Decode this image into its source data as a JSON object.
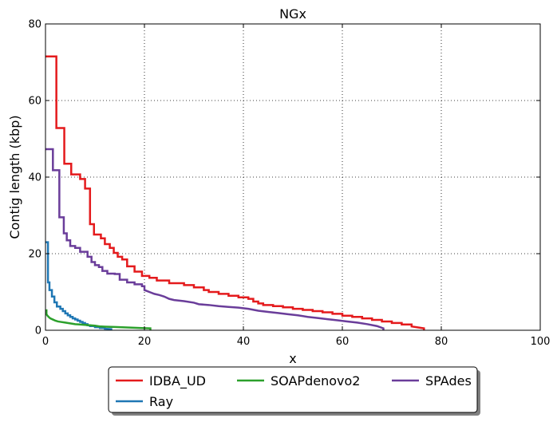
{
  "chart_data": {
    "type": "line",
    "title": "NGx",
    "xlabel": "x",
    "ylabel": "Contig length  (kbp)",
    "xlim": [
      0,
      100
    ],
    "ylim": [
      0,
      80
    ],
    "xticks": [
      0,
      20,
      40,
      60,
      80,
      100
    ],
    "yticks": [
      0,
      20,
      40,
      60,
      80
    ],
    "grid": true,
    "legend_position": "bottom-center",
    "series": [
      {
        "name": "IDBA_UD",
        "color": "#e41a1c",
        "points": [
          [
            0,
            71.5
          ],
          [
            2.2,
            71.5
          ],
          [
            2.2,
            52.8
          ],
          [
            3.8,
            52.8
          ],
          [
            3.8,
            43.5
          ],
          [
            5.2,
            43.5
          ],
          [
            5.2,
            40.7
          ],
          [
            7,
            40.7
          ],
          [
            7,
            39.5
          ],
          [
            8,
            39.5
          ],
          [
            8,
            37
          ],
          [
            9,
            37
          ],
          [
            9,
            27.7
          ],
          [
            9.8,
            27.7
          ],
          [
            9.8,
            25
          ],
          [
            11.2,
            25
          ],
          [
            11.2,
            24
          ],
          [
            12,
            24
          ],
          [
            12,
            22.5
          ],
          [
            13,
            22.5
          ],
          [
            13,
            21.5
          ],
          [
            13.8,
            21.5
          ],
          [
            13.8,
            20.2
          ],
          [
            14.6,
            20.2
          ],
          [
            14.6,
            19.2
          ],
          [
            15.5,
            19.2
          ],
          [
            15.5,
            18.5
          ],
          [
            16.5,
            18.5
          ],
          [
            16.5,
            16.7
          ],
          [
            18,
            16.7
          ],
          [
            18,
            15.3
          ],
          [
            19.5,
            15.3
          ],
          [
            19.5,
            14.2
          ],
          [
            21,
            14.2
          ],
          [
            21,
            13.7
          ],
          [
            22.5,
            13.7
          ],
          [
            22.5,
            13
          ],
          [
            25,
            13
          ],
          [
            25,
            12.3
          ],
          [
            28,
            12.3
          ],
          [
            28,
            11.8
          ],
          [
            30,
            11.8
          ],
          [
            30,
            11.2
          ],
          [
            32,
            11.2
          ],
          [
            32,
            10.5
          ],
          [
            33,
            10.5
          ],
          [
            33,
            10
          ],
          [
            35,
            10
          ],
          [
            35,
            9.5
          ],
          [
            37,
            9.5
          ],
          [
            37,
            9
          ],
          [
            39,
            9
          ],
          [
            39,
            8.6
          ],
          [
            41,
            8.6
          ],
          [
            41,
            8.2
          ],
          [
            42,
            8.2
          ],
          [
            42,
            7.5
          ],
          [
            43,
            7.5
          ],
          [
            43,
            7
          ],
          [
            44,
            7
          ],
          [
            44,
            6.6
          ],
          [
            46,
            6.6
          ],
          [
            46,
            6.3
          ],
          [
            48,
            6.3
          ],
          [
            48,
            6
          ],
          [
            50,
            6
          ],
          [
            50,
            5.6
          ],
          [
            52,
            5.6
          ],
          [
            52,
            5.3
          ],
          [
            54,
            5.3
          ],
          [
            54,
            5
          ],
          [
            56,
            5
          ],
          [
            56,
            4.7
          ],
          [
            58,
            4.7
          ],
          [
            58,
            4.3
          ],
          [
            60,
            4.3
          ],
          [
            60,
            3.8
          ],
          [
            62,
            3.8
          ],
          [
            62,
            3.5
          ],
          [
            64,
            3.5
          ],
          [
            64,
            3.1
          ],
          [
            66,
            3.1
          ],
          [
            66,
            2.7
          ],
          [
            68,
            2.7
          ],
          [
            68,
            2.3
          ],
          [
            70,
            2.3
          ],
          [
            70,
            1.9
          ],
          [
            72,
            1.9
          ],
          [
            72,
            1.5
          ],
          [
            74,
            1.5
          ],
          [
            74,
            1
          ],
          [
            76.5,
            0.5
          ],
          [
            76.5,
            0
          ]
        ]
      },
      {
        "name": "Ray",
        "color": "#1f77b4",
        "points": [
          [
            0,
            23
          ],
          [
            0.5,
            23
          ],
          [
            0.5,
            12.5
          ],
          [
            0.8,
            12.5
          ],
          [
            0.8,
            10.5
          ],
          [
            1.3,
            10.5
          ],
          [
            1.3,
            8.8
          ],
          [
            1.8,
            8.8
          ],
          [
            1.8,
            7.3
          ],
          [
            2.3,
            7.3
          ],
          [
            2.3,
            6.2
          ],
          [
            3,
            6.2
          ],
          [
            3,
            5.6
          ],
          [
            3.5,
            5.6
          ],
          [
            3.5,
            5
          ],
          [
            4,
            5
          ],
          [
            4,
            4.4
          ],
          [
            4.5,
            4.4
          ],
          [
            4.5,
            3.9
          ],
          [
            5,
            3.9
          ],
          [
            5,
            3.5
          ],
          [
            5.5,
            3.5
          ],
          [
            5.5,
            3.1
          ],
          [
            6,
            3.1
          ],
          [
            6,
            2.8
          ],
          [
            6.5,
            2.8
          ],
          [
            6.5,
            2.5
          ],
          [
            7,
            2.5
          ],
          [
            7,
            2.2
          ],
          [
            7.5,
            2.2
          ],
          [
            7.5,
            1.9
          ],
          [
            8,
            1.9
          ],
          [
            8,
            1.6
          ],
          [
            8.5,
            1.6
          ],
          [
            8.5,
            1.3
          ],
          [
            9,
            1.3
          ],
          [
            9,
            1.1
          ],
          [
            10,
            1.1
          ],
          [
            10,
            0.8
          ],
          [
            11,
            0.8
          ],
          [
            11,
            0.6
          ],
          [
            12,
            0.6
          ],
          [
            12,
            0.4
          ],
          [
            13.3,
            0.3
          ],
          [
            13.3,
            0
          ]
        ]
      },
      {
        "name": "SOAPdenovo2",
        "color": "#2ca02c",
        "points": [
          [
            0,
            5.2
          ],
          [
            0.2,
            5.2
          ],
          [
            0.2,
            4.2
          ],
          [
            0.4,
            3.8
          ],
          [
            0.7,
            3.4
          ],
          [
            1,
            3.1
          ],
          [
            1.5,
            2.8
          ],
          [
            2,
            2.5
          ],
          [
            2.5,
            2.3
          ],
          [
            3,
            2.2
          ],
          [
            4,
            2.0
          ],
          [
            5,
            1.8
          ],
          [
            6,
            1.6
          ],
          [
            7,
            1.5
          ],
          [
            8,
            1.4
          ],
          [
            9,
            1.3
          ],
          [
            10,
            1.2
          ],
          [
            11,
            1.0
          ],
          [
            12,
            0.95
          ],
          [
            14,
            0.85
          ],
          [
            16,
            0.75
          ],
          [
            18,
            0.65
          ],
          [
            20,
            0.55
          ],
          [
            21.2,
            0.5
          ],
          [
            21.2,
            0
          ]
        ]
      },
      {
        "name": "SPAdes",
        "color": "#6a3d9a",
        "points": [
          [
            0,
            47.3
          ],
          [
            1.5,
            47.3
          ],
          [
            1.5,
            41.8
          ],
          [
            2.8,
            41.8
          ],
          [
            2.8,
            29.5
          ],
          [
            3.7,
            29.5
          ],
          [
            3.7,
            25.3
          ],
          [
            4.3,
            25.3
          ],
          [
            4.3,
            23.5
          ],
          [
            5,
            23.5
          ],
          [
            5,
            22
          ],
          [
            6,
            22
          ],
          [
            6,
            21.5
          ],
          [
            7,
            21.5
          ],
          [
            7,
            20.5
          ],
          [
            8.5,
            20.5
          ],
          [
            8.5,
            19.2
          ],
          [
            9.3,
            19.2
          ],
          [
            9.3,
            17.8
          ],
          [
            10,
            17.8
          ],
          [
            10,
            17
          ],
          [
            10.8,
            17
          ],
          [
            10.8,
            16.5
          ],
          [
            11.5,
            16.5
          ],
          [
            11.5,
            15.5
          ],
          [
            12.5,
            15.5
          ],
          [
            12.5,
            14.8
          ],
          [
            14,
            14.8
          ],
          [
            14,
            14.7
          ],
          [
            15,
            14.7
          ],
          [
            15,
            13.2
          ],
          [
            16.5,
            13.2
          ],
          [
            16.5,
            12.5
          ],
          [
            18,
            12.5
          ],
          [
            18,
            12
          ],
          [
            19.5,
            12
          ],
          [
            19.5,
            11.5
          ],
          [
            20,
            11.5
          ],
          [
            20,
            10.5
          ],
          [
            21,
            10
          ],
          [
            22,
            9.5
          ],
          [
            23,
            9.2
          ],
          [
            24,
            8.8
          ],
          [
            25,
            8.2
          ],
          [
            26,
            7.9
          ],
          [
            28,
            7.6
          ],
          [
            30,
            7.2
          ],
          [
            31,
            6.8
          ],
          [
            33,
            6.6
          ],
          [
            35,
            6.3
          ],
          [
            37,
            6.1
          ],
          [
            39,
            5.9
          ],
          [
            41,
            5.6
          ],
          [
            43,
            5.1
          ],
          [
            45,
            4.8
          ],
          [
            47,
            4.5
          ],
          [
            49,
            4.2
          ],
          [
            51,
            3.9
          ],
          [
            53,
            3.5
          ],
          [
            55,
            3.2
          ],
          [
            57,
            2.9
          ],
          [
            59,
            2.6
          ],
          [
            61,
            2.3
          ],
          [
            63,
            2.0
          ],
          [
            65,
            1.6
          ],
          [
            67,
            1.1
          ],
          [
            68.3,
            0.5
          ],
          [
            68.3,
            0
          ]
        ]
      }
    ]
  }
}
